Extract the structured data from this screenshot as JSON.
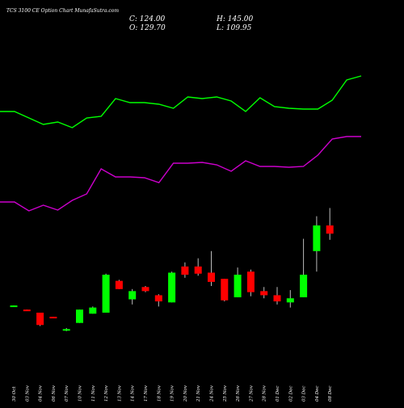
{
  "header": {
    "title": "TCS 3100  CE Option  Chart MunafaSutra.com",
    "close_label": "C: 124.00",
    "high_label": "H: 145.00",
    "open_label": "O: 129.70",
    "low_label": "L: 109.95"
  },
  "chart_data": {
    "type": "candlestick",
    "title": "TCS 3100  CE Option  Chart MunafaSutra.com",
    "categories": [
      "30 Oct",
      "03 Nov",
      "04 Nov",
      "06 Nov",
      "07 Nov",
      "10 Nov",
      "11 Nov",
      "12 Nov",
      "13 Nov",
      "14 Nov",
      "17 Nov",
      "18 Nov",
      "19 Nov",
      "20 Nov",
      "21 Nov",
      "24 Nov",
      "25 Nov",
      "26 Nov",
      "27 Nov",
      "28 Nov",
      "01 Dec",
      "02 Dec",
      "03 Dec",
      "04 Dec",
      "08 Dec"
    ],
    "candles": [
      {
        "open": 7,
        "high": 7,
        "low": 6,
        "close": 7,
        "dir": "up"
      },
      {
        "open": 3,
        "high": 3,
        "low": 2,
        "close": 2,
        "dir": "down"
      },
      {
        "open": 0,
        "high": 0,
        "low": -13,
        "close": -12,
        "dir": "down"
      },
      {
        "open": -4,
        "high": -4,
        "low": -5,
        "close": -4,
        "dir": "down"
      },
      {
        "open": -17,
        "high": -15,
        "low": -18,
        "close": -16,
        "dir": "up"
      },
      {
        "open": -10,
        "high": 3,
        "low": -10,
        "close": 3,
        "dir": "up"
      },
      {
        "open": -1,
        "high": 6,
        "low": -1,
        "close": 5,
        "dir": "up"
      },
      {
        "open": 0,
        "high": 38,
        "low": 0,
        "close": 37,
        "dir": "up"
      },
      {
        "open": 31,
        "high": 32,
        "low": 23,
        "close": 23,
        "dir": "down"
      },
      {
        "open": 13,
        "high": 23,
        "low": 8,
        "close": 21,
        "dir": "up"
      },
      {
        "open": 25,
        "high": 26,
        "low": 20,
        "close": 21,
        "dir": "down"
      },
      {
        "open": 17,
        "high": 18,
        "low": 6,
        "close": 11,
        "dir": "down"
      },
      {
        "open": 10,
        "high": 40,
        "low": 10,
        "close": 39,
        "dir": "up"
      },
      {
        "open": 45,
        "high": 49,
        "low": 34,
        "close": 37,
        "dir": "down"
      },
      {
        "open": 45,
        "high": 53,
        "low": 36,
        "close": 38,
        "dir": "down"
      },
      {
        "open": 39,
        "high": 60,
        "low": 26,
        "close": 30,
        "dir": "down"
      },
      {
        "open": 33,
        "high": 33,
        "low": 11,
        "close": 12,
        "dir": "down"
      },
      {
        "open": 15,
        "high": 44,
        "low": 15,
        "close": 37,
        "dir": "up"
      },
      {
        "open": 40,
        "high": 42,
        "low": 16,
        "close": 20,
        "dir": "down"
      },
      {
        "open": 21,
        "high": 25,
        "low": 14,
        "close": 17,
        "dir": "down"
      },
      {
        "open": 17,
        "high": 25,
        "low": 8,
        "close": 11,
        "dir": "down"
      },
      {
        "open": 10,
        "high": 22,
        "low": 5,
        "close": 14,
        "dir": "up"
      },
      {
        "open": 15,
        "high": 72,
        "low": 15,
        "close": 37,
        "dir": "up"
      },
      {
        "open": 60,
        "high": 94,
        "low": 40,
        "close": 85,
        "dir": "up"
      },
      {
        "open": 85,
        "high": 102,
        "low": 71,
        "close": 77,
        "dir": "down"
      }
    ],
    "overlay_series": [
      {
        "color": "#00ff00",
        "values": [
          287,
          287,
          279,
          271,
          274,
          267,
          279,
          281,
          303,
          298,
          298,
          296,
          291,
          305,
          303,
          305,
          300,
          287,
          304,
          293,
          291,
          290,
          290,
          301,
          326,
          331
        ]
      },
      {
        "color": "#cc00cc",
        "values": [
          175,
          175,
          164,
          171,
          165,
          177,
          185,
          216,
          206,
          206,
          205,
          199,
          223,
          223,
          224,
          221,
          213,
          226,
          219,
          219,
          218,
          219,
          233,
          253,
          256,
          256
        ]
      }
    ],
    "colors": {
      "up": "#00ff00",
      "down": "#ff0000",
      "background": "#000000",
      "text": "#ffffff"
    },
    "grid": false
  }
}
